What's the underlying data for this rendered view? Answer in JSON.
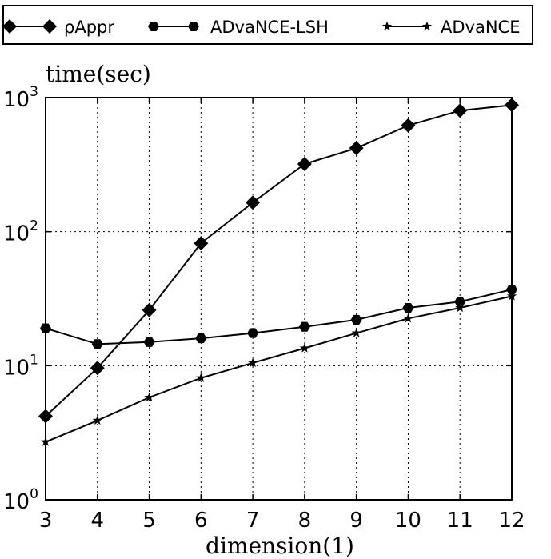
{
  "chart_data": {
    "type": "line",
    "xlabel": "dimension(1)",
    "ylabel": "time(sec)",
    "x": [
      3,
      4,
      5,
      6,
      7,
      8,
      9,
      10,
      11,
      12
    ],
    "xlim": [
      3,
      12
    ],
    "ylim": [
      1,
      1000
    ],
    "yscale": "log",
    "grid": true,
    "legend_position": "top",
    "x_ticks": [
      "3",
      "4",
      "5",
      "6",
      "7",
      "8",
      "9",
      "10",
      "11",
      "12"
    ],
    "y_ticks": [
      {
        "value": 1,
        "base": "10",
        "exp": "0"
      },
      {
        "value": 10,
        "base": "10",
        "exp": "1"
      },
      {
        "value": 100,
        "base": "10",
        "exp": "2"
      },
      {
        "value": 1000,
        "base": "10",
        "exp": "3"
      }
    ],
    "series": [
      {
        "name": "ρAppr",
        "marker": "diamond",
        "values": [
          4.2,
          9.6,
          26,
          82,
          165,
          320,
          420,
          620,
          800,
          880
        ]
      },
      {
        "name": "ADvaNCE-LSH",
        "marker": "hexagon",
        "values": [
          19,
          14.5,
          15,
          16,
          17.5,
          19.5,
          22,
          27,
          30,
          37
        ]
      },
      {
        "name": "ADvaNCE",
        "marker": "star",
        "values": [
          2.7,
          3.9,
          5.8,
          8.1,
          10.5,
          13.5,
          17.5,
          22.5,
          27,
          33
        ]
      }
    ]
  }
}
